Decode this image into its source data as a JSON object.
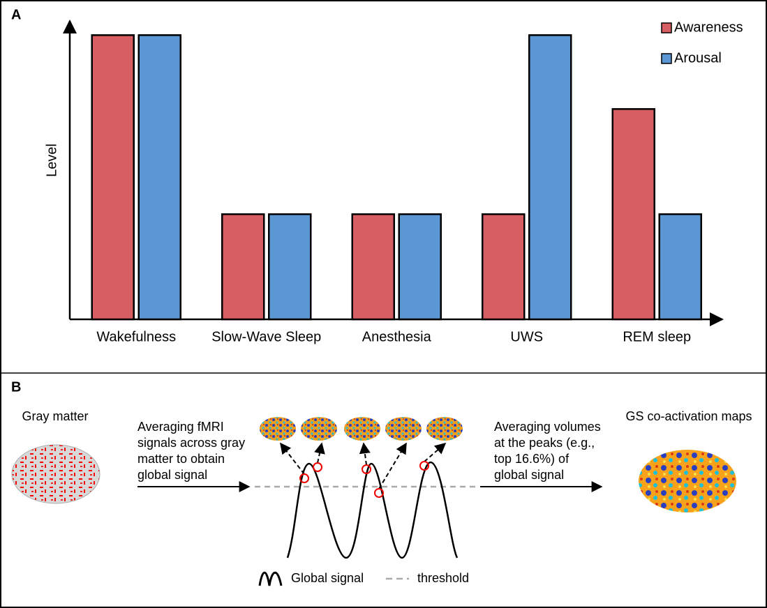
{
  "panel_a_label": "A",
  "chart_data": {
    "type": "bar",
    "y_label": "Level",
    "categories": [
      "Wakefulness",
      "Slow-Wave Sleep",
      "Anesthesia",
      "UWS",
      "REM sleep"
    ],
    "series": [
      {
        "name": "Awareness",
        "color": "#d75f63",
        "values": [
          1,
          0.37,
          0.37,
          0.37,
          0.74
        ]
      },
      {
        "name": "Arousal",
        "color": "#5b97d2",
        "values": [
          1,
          0.37,
          0.37,
          1,
          0.37
        ]
      }
    ],
    "ylim": [
      0,
      1.05
    ],
    "legend": "upper right"
  },
  "panel_b_label": "B",
  "diagram": {
    "gray_matter": "Gray matter",
    "left_step": [
      "Averaging fMRI",
      "signals across gray",
      "matter to obtain",
      "global signal"
    ],
    "right_step": [
      "Averaging volumes",
      "at the peaks (e.g.,",
      "top 16.6%) of",
      "global signal"
    ],
    "output": "GS co-activation maps",
    "legend_signal": "Global signal",
    "legend_threshold": "threshold"
  }
}
